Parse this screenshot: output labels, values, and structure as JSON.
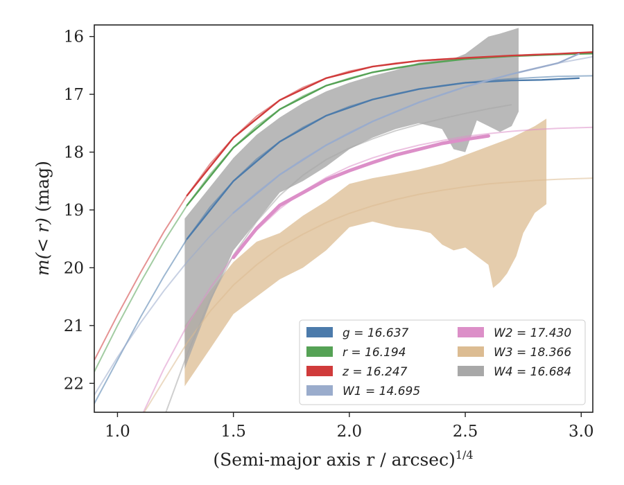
{
  "chart_data": {
    "type": "line",
    "xlabel": "(Semi-major axis r / arcsec)",
    "xlabel_exp": "1/4",
    "ylabel_prefix": "m(< r)",
    "ylabel_suffix": " (mag)",
    "xlim": [
      0.9,
      3.05
    ],
    "ylim": [
      22.5,
      15.8
    ],
    "y_inverted": true,
    "grid": false,
    "legend_position": "lower-right",
    "x_ticks": [
      {
        "v": 1.0,
        "label": "1.0"
      },
      {
        "v": 1.5,
        "label": "1.5"
      },
      {
        "v": 2.0,
        "label": "2.0"
      },
      {
        "v": 2.5,
        "label": "2.5"
      },
      {
        "v": 3.0,
        "label": "3.0"
      }
    ],
    "y_ticks": [
      {
        "v": 16,
        "label": "16"
      },
      {
        "v": 17,
        "label": "17"
      },
      {
        "v": 18,
        "label": "18"
      },
      {
        "v": 19,
        "label": "19"
      },
      {
        "v": 20,
        "label": "20"
      },
      {
        "v": 21,
        "label": "21"
      },
      {
        "v": 22,
        "label": "22"
      }
    ],
    "legend": [
      {
        "label": "g = 16.637",
        "color": "#4c7bab"
      },
      {
        "label": "r = 16.194",
        "color": "#55a255"
      },
      {
        "label": "z = 16.247",
        "color": "#d03b3b"
      },
      {
        "label": "W1 = 14.695",
        "color": "#9aaccc"
      },
      {
        "label": "W2 = 17.430",
        "color": "#dc8fc8"
      },
      {
        "label": "W3 = 18.366",
        "color": "#dcbc92"
      },
      {
        "label": "W4 = 16.684",
        "color": "#a8a8a8"
      }
    ],
    "series": [
      {
        "name": "g",
        "color": "#4c7bab",
        "model": [
          [
            0.9,
            22.35
          ],
          [
            1.0,
            21.6
          ],
          [
            1.1,
            20.85
          ],
          [
            1.2,
            20.15
          ],
          [
            1.3,
            19.5
          ],
          [
            1.4,
            18.95
          ],
          [
            1.5,
            18.5
          ],
          [
            1.6,
            18.12
          ],
          [
            1.7,
            17.82
          ],
          [
            1.8,
            17.57
          ],
          [
            1.9,
            17.37
          ],
          [
            2.0,
            17.21
          ],
          [
            2.1,
            17.09
          ],
          [
            2.2,
            16.99
          ],
          [
            2.3,
            16.91
          ],
          [
            2.4,
            16.85
          ],
          [
            2.5,
            16.8
          ],
          [
            2.6,
            16.76
          ],
          [
            2.7,
            16.73
          ],
          [
            2.8,
            16.71
          ],
          [
            2.9,
            16.69
          ],
          [
            3.05,
            16.68
          ]
        ],
        "measured": [
          [
            1.3,
            19.5
          ],
          [
            1.5,
            18.5
          ],
          [
            1.7,
            17.82
          ],
          [
            1.9,
            17.37
          ],
          [
            2.1,
            17.09
          ],
          [
            2.3,
            16.91
          ],
          [
            2.5,
            16.8
          ],
          [
            2.7,
            16.76
          ],
          [
            2.83,
            16.75
          ],
          [
            2.99,
            16.72
          ]
        ]
      },
      {
        "name": "r",
        "color": "#55a255",
        "model": [
          [
            0.9,
            21.8
          ],
          [
            1.0,
            21.0
          ],
          [
            1.1,
            20.25
          ],
          [
            1.2,
            19.55
          ],
          [
            1.3,
            18.92
          ],
          [
            1.4,
            18.38
          ],
          [
            1.5,
            17.92
          ],
          [
            1.6,
            17.55
          ],
          [
            1.7,
            17.26
          ],
          [
            1.8,
            17.03
          ],
          [
            1.9,
            16.85
          ],
          [
            2.0,
            16.72
          ],
          [
            2.1,
            16.62
          ],
          [
            2.2,
            16.54
          ],
          [
            2.3,
            16.48
          ],
          [
            2.4,
            16.43
          ],
          [
            2.5,
            16.39
          ],
          [
            2.6,
            16.36
          ],
          [
            2.7,
            16.34
          ],
          [
            2.8,
            16.32
          ],
          [
            2.9,
            16.31
          ],
          [
            3.05,
            16.3
          ]
        ],
        "measured": [
          [
            1.3,
            18.92
          ],
          [
            1.5,
            17.92
          ],
          [
            1.7,
            17.26
          ],
          [
            1.9,
            16.85
          ],
          [
            2.1,
            16.62
          ],
          [
            2.3,
            16.48
          ],
          [
            2.5,
            16.39
          ],
          [
            2.7,
            16.34
          ],
          [
            2.9,
            16.31
          ],
          [
            3.05,
            16.29
          ]
        ]
      },
      {
        "name": "z",
        "color": "#d03b3b",
        "model": [
          [
            0.9,
            21.6
          ],
          [
            1.0,
            20.82
          ],
          [
            1.1,
            20.08
          ],
          [
            1.2,
            19.38
          ],
          [
            1.3,
            18.75
          ],
          [
            1.4,
            18.2
          ],
          [
            1.5,
            17.75
          ],
          [
            1.6,
            17.38
          ],
          [
            1.7,
            17.1
          ],
          [
            1.8,
            16.88
          ],
          [
            1.9,
            16.72
          ],
          [
            2.0,
            16.6
          ],
          [
            2.1,
            16.52
          ],
          [
            2.2,
            16.46
          ],
          [
            2.3,
            16.42
          ],
          [
            2.4,
            16.39
          ],
          [
            2.5,
            16.37
          ],
          [
            2.6,
            16.35
          ],
          [
            2.7,
            16.33
          ],
          [
            2.8,
            16.31
          ],
          [
            2.9,
            16.3
          ],
          [
            3.05,
            16.28
          ]
        ],
        "measured": [
          [
            1.3,
            18.75
          ],
          [
            1.5,
            17.75
          ],
          [
            1.7,
            17.1
          ],
          [
            1.9,
            16.72
          ],
          [
            2.1,
            16.52
          ],
          [
            2.3,
            16.42
          ],
          [
            2.5,
            16.37
          ],
          [
            2.7,
            16.33
          ],
          [
            2.9,
            16.3
          ],
          [
            3.05,
            16.27
          ]
        ]
      },
      {
        "name": "W1",
        "color": "#9aaccc",
        "model": [
          [
            0.9,
            22.2
          ],
          [
            1.0,
            21.55
          ],
          [
            1.1,
            20.95
          ],
          [
            1.2,
            20.4
          ],
          [
            1.3,
            19.9
          ],
          [
            1.4,
            19.45
          ],
          [
            1.5,
            19.05
          ],
          [
            1.6,
            18.7
          ],
          [
            1.7,
            18.39
          ],
          [
            1.8,
            18.12
          ],
          [
            1.9,
            17.88
          ],
          [
            2.0,
            17.66
          ],
          [
            2.1,
            17.47
          ],
          [
            2.2,
            17.3
          ],
          [
            2.3,
            17.14
          ],
          [
            2.4,
            17.0
          ],
          [
            2.5,
            16.87
          ],
          [
            2.6,
            16.75
          ],
          [
            2.7,
            16.65
          ],
          [
            2.8,
            16.55
          ],
          [
            2.9,
            16.46
          ],
          [
            3.05,
            16.35
          ]
        ],
        "measured": [
          [
            1.5,
            19.05
          ],
          [
            1.7,
            18.39
          ],
          [
            1.9,
            17.88
          ],
          [
            2.1,
            17.47
          ],
          [
            2.3,
            17.14
          ],
          [
            2.5,
            16.87
          ],
          [
            2.7,
            16.65
          ],
          [
            2.9,
            16.46
          ],
          [
            2.99,
            16.3
          ]
        ]
      },
      {
        "name": "W2",
        "color": "#dc8fc8",
        "model": [
          [
            1.1,
            22.6
          ],
          [
            1.2,
            21.75
          ],
          [
            1.3,
            21.0
          ],
          [
            1.4,
            20.35
          ],
          [
            1.5,
            19.8
          ],
          [
            1.6,
            19.35
          ],
          [
            1.7,
            18.98
          ],
          [
            1.8,
            18.68
          ],
          [
            1.9,
            18.44
          ],
          [
            2.0,
            18.25
          ],
          [
            2.1,
            18.1
          ],
          [
            2.2,
            17.98
          ],
          [
            2.3,
            17.88
          ],
          [
            2.4,
            17.8
          ],
          [
            2.5,
            17.73
          ],
          [
            2.6,
            17.68
          ],
          [
            2.7,
            17.64
          ],
          [
            2.8,
            17.61
          ],
          [
            2.9,
            17.59
          ],
          [
            3.05,
            17.57
          ]
        ],
        "measured": [
          [
            1.5,
            19.82
          ],
          [
            1.6,
            19.32
          ],
          [
            1.7,
            18.92
          ],
          [
            1.8,
            18.7
          ],
          [
            1.9,
            18.48
          ],
          [
            2.0,
            18.32
          ],
          [
            2.1,
            18.18
          ],
          [
            2.2,
            18.05
          ],
          [
            2.3,
            17.95
          ],
          [
            2.4,
            17.85
          ],
          [
            2.5,
            17.78
          ],
          [
            2.6,
            17.72
          ]
        ]
      },
      {
        "name": "W3",
        "color": "#dcbc92",
        "model": [
          [
            1.1,
            22.6
          ],
          [
            1.2,
            21.95
          ],
          [
            1.3,
            21.3
          ],
          [
            1.4,
            20.75
          ],
          [
            1.5,
            20.3
          ],
          [
            1.6,
            19.95
          ],
          [
            1.7,
            19.65
          ],
          [
            1.8,
            19.42
          ],
          [
            1.9,
            19.22
          ],
          [
            2.0,
            19.06
          ],
          [
            2.1,
            18.93
          ],
          [
            2.2,
            18.82
          ],
          [
            2.3,
            18.73
          ],
          [
            2.4,
            18.66
          ],
          [
            2.5,
            18.6
          ],
          [
            2.6,
            18.55
          ],
          [
            2.7,
            18.52
          ],
          [
            2.8,
            18.49
          ],
          [
            2.9,
            18.47
          ],
          [
            3.05,
            18.45
          ]
        ],
        "band_upper": [
          [
            1.29,
            21.0
          ],
          [
            1.4,
            20.4
          ],
          [
            1.5,
            19.9
          ],
          [
            1.6,
            19.55
          ],
          [
            1.7,
            19.4
          ],
          [
            1.8,
            19.1
          ],
          [
            1.9,
            18.85
          ],
          [
            2.0,
            18.55
          ],
          [
            2.1,
            18.45
          ],
          [
            2.2,
            18.38
          ],
          [
            2.3,
            18.3
          ],
          [
            2.4,
            18.2
          ],
          [
            2.5,
            18.05
          ],
          [
            2.6,
            17.9
          ],
          [
            2.7,
            17.75
          ],
          [
            2.8,
            17.55
          ],
          [
            2.85,
            17.42
          ]
        ],
        "band_lower": [
          [
            2.85,
            18.9
          ],
          [
            2.8,
            19.05
          ],
          [
            2.75,
            19.4
          ],
          [
            2.72,
            19.8
          ],
          [
            2.68,
            20.1
          ],
          [
            2.65,
            20.25
          ],
          [
            2.62,
            20.35
          ],
          [
            2.6,
            19.95
          ],
          [
            2.55,
            19.8
          ],
          [
            2.5,
            19.65
          ],
          [
            2.45,
            19.7
          ],
          [
            2.4,
            19.6
          ],
          [
            2.35,
            19.4
          ],
          [
            2.3,
            19.35
          ],
          [
            2.2,
            19.3
          ],
          [
            2.1,
            19.2
          ],
          [
            2.0,
            19.3
          ],
          [
            1.9,
            19.7
          ],
          [
            1.8,
            20.0
          ],
          [
            1.7,
            20.2
          ],
          [
            1.6,
            20.5
          ],
          [
            1.5,
            20.8
          ],
          [
            1.4,
            21.4
          ],
          [
            1.29,
            22.05
          ]
        ]
      },
      {
        "name": "W4",
        "color": "#a8a8a8",
        "model": [
          [
            1.2,
            22.6
          ],
          [
            1.3,
            21.5
          ],
          [
            1.4,
            20.55
          ],
          [
            1.5,
            19.78
          ],
          [
            1.6,
            19.2
          ],
          [
            1.7,
            18.75
          ],
          [
            1.8,
            18.4
          ],
          [
            1.9,
            18.13
          ],
          [
            2.0,
            17.93
          ],
          [
            2.1,
            17.77
          ],
          [
            2.2,
            17.63
          ],
          [
            2.3,
            17.52
          ],
          [
            2.4,
            17.42
          ],
          [
            2.5,
            17.33
          ],
          [
            2.6,
            17.25
          ],
          [
            2.7,
            17.18
          ]
        ],
        "band_upper": [
          [
            1.29,
            19.15
          ],
          [
            1.4,
            18.6
          ],
          [
            1.5,
            18.1
          ],
          [
            1.6,
            17.7
          ],
          [
            1.7,
            17.4
          ],
          [
            1.8,
            17.15
          ],
          [
            1.9,
            16.95
          ],
          [
            2.0,
            16.8
          ],
          [
            2.1,
            16.68
          ],
          [
            2.2,
            16.58
          ],
          [
            2.3,
            16.45
          ],
          [
            2.4,
            16.4
          ],
          [
            2.45,
            16.38
          ],
          [
            2.5,
            16.3
          ],
          [
            2.55,
            16.15
          ],
          [
            2.6,
            16.0
          ],
          [
            2.65,
            15.95
          ],
          [
            2.73,
            15.85
          ]
        ],
        "band_lower": [
          [
            2.73,
            17.3
          ],
          [
            2.7,
            17.55
          ],
          [
            2.65,
            17.65
          ],
          [
            2.6,
            17.55
          ],
          [
            2.55,
            17.45
          ],
          [
            2.5,
            18.0
          ],
          [
            2.45,
            17.95
          ],
          [
            2.4,
            17.6
          ],
          [
            2.35,
            17.55
          ],
          [
            2.3,
            17.5
          ],
          [
            2.2,
            17.6
          ],
          [
            2.1,
            17.75
          ],
          [
            2.0,
            17.95
          ],
          [
            1.9,
            18.25
          ],
          [
            1.8,
            18.5
          ],
          [
            1.7,
            18.7
          ],
          [
            1.6,
            19.2
          ],
          [
            1.5,
            19.7
          ],
          [
            1.4,
            20.6
          ],
          [
            1.29,
            21.75
          ]
        ]
      }
    ]
  }
}
